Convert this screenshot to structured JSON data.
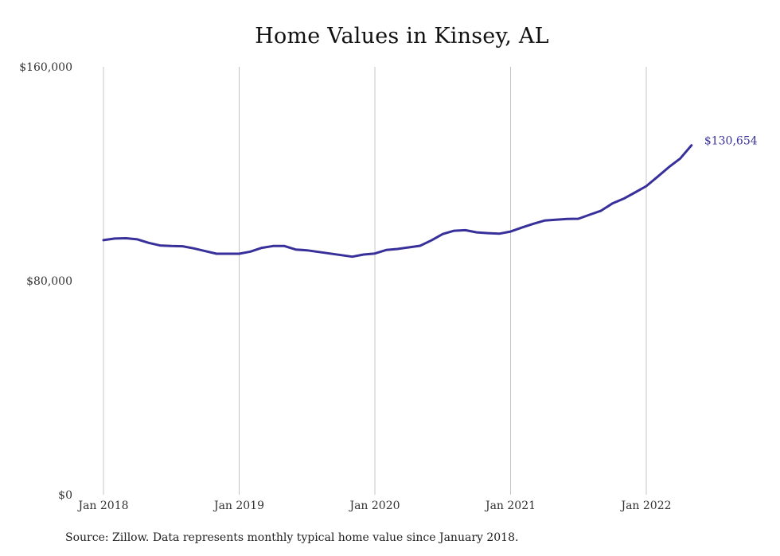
{
  "chart_data": {
    "type": "line",
    "title": "Home Values in Kinsey, AL",
    "xlabel": "",
    "ylabel": "",
    "x_ticks": [
      "Jan 2018",
      "Jan 2019",
      "Jan 2020",
      "Jan 2021",
      "Jan 2022"
    ],
    "y_ticks": [
      "$0",
      "$80,000",
      "$160,000"
    ],
    "ylim": [
      0,
      160000
    ],
    "xlim": [
      "2018-01",
      "2022-05"
    ],
    "grid": "vertical",
    "end_label": "$130,654",
    "line_color": "#38309a",
    "series": [
      {
        "x": [
          "2018-01",
          "2018-02",
          "2018-03",
          "2018-04",
          "2018-05",
          "2018-06",
          "2018-07",
          "2018-08",
          "2018-09",
          "2018-10",
          "2018-11",
          "2018-12",
          "2019-01",
          "2019-02",
          "2019-03",
          "2019-04",
          "2019-05",
          "2019-06",
          "2019-07",
          "2019-08",
          "2019-09",
          "2019-10",
          "2019-11",
          "2019-12",
          "2020-01",
          "2020-02",
          "2020-03",
          "2020-04",
          "2020-05",
          "2020-06",
          "2020-07",
          "2020-08",
          "2020-09",
          "2020-10",
          "2020-11",
          "2020-12",
          "2021-01",
          "2021-02",
          "2021-03",
          "2021-04",
          "2021-05",
          "2021-06",
          "2021-07",
          "2021-08",
          "2021-09",
          "2021-10",
          "2021-11",
          "2021-12",
          "2022-01",
          "2022-02",
          "2022-03",
          "2022-04",
          "2022-05"
        ],
        "values": [
          95200,
          95800,
          95900,
          95500,
          94200,
          93200,
          93000,
          92900,
          92100,
          91100,
          90100,
          90100,
          90100,
          90900,
          92300,
          93000,
          93000,
          91700,
          91400,
          90800,
          90200,
          89600,
          89000,
          89800,
          90200,
          91500,
          91900,
          92500,
          93100,
          95100,
          97500,
          98700,
          98900,
          98100,
          97800,
          97600,
          98400,
          99900,
          101300,
          102500,
          102800,
          103100,
          103200,
          104700,
          106200,
          108900,
          110700,
          113000,
          115400,
          118900,
          122500,
          125700,
          130654
        ]
      }
    ]
  },
  "source_note": "Source: Zillow. Data represents monthly typical home value since January 2018."
}
